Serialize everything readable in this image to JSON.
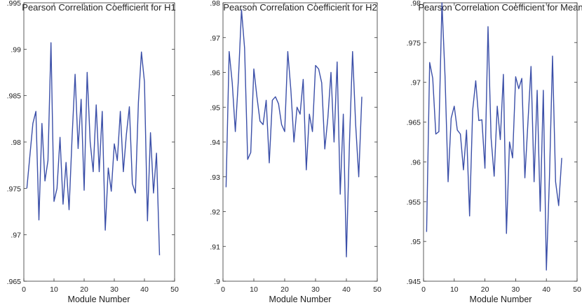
{
  "chart_data": [
    {
      "type": "line",
      "title": "Pearson Correlation Coefficient for H1",
      "xlabel": "Module Number",
      "ylabel": "",
      "xlim": [
        0,
        50
      ],
      "ylim": [
        0.965,
        0.995
      ],
      "xticks": [
        0,
        10,
        20,
        30,
        40,
        50
      ],
      "yticks": [
        0.965,
        0.97,
        0.975,
        0.98,
        0.985,
        0.99,
        0.995
      ],
      "grid": false,
      "color": "#3b4fa8",
      "series": [
        {
          "x": [
            1,
            2,
            3,
            4,
            5,
            6,
            7,
            8,
            9,
            10,
            11,
            12,
            13,
            14,
            15,
            16,
            17,
            18,
            19,
            20,
            21,
            22,
            23,
            24,
            25,
            26,
            27,
            28,
            29,
            30,
            31,
            32,
            33,
            34,
            35,
            36,
            37,
            38,
            39,
            40,
            41,
            42,
            43,
            44,
            45
          ],
          "values": [
            0.975,
            0.9785,
            0.982,
            0.9833,
            0.9716,
            0.982,
            0.9758,
            0.978,
            0.9907,
            0.9736,
            0.975,
            0.9805,
            0.9733,
            0.9778,
            0.9727,
            0.9805,
            0.9873,
            0.9793,
            0.9846,
            0.9748,
            0.9875,
            0.98,
            0.9768,
            0.984,
            0.9768,
            0.9833,
            0.9705,
            0.9772,
            0.9747,
            0.9798,
            0.978,
            0.9833,
            0.9768,
            0.9808,
            0.9838,
            0.9755,
            0.9745,
            0.9843,
            0.9897,
            0.9865,
            0.9715,
            0.981,
            0.9745,
            0.9788,
            0.9678
          ]
        }
      ]
    },
    {
      "type": "line",
      "title": "Pearson Correlation Coefficient for H2",
      "xlabel": "Module Number",
      "ylabel": "",
      "xlim": [
        0,
        50
      ],
      "ylim": [
        0.9,
        0.98
      ],
      "xticks": [
        0,
        10,
        20,
        30,
        40,
        50
      ],
      "yticks": [
        0.9,
        0.91,
        0.92,
        0.93,
        0.94,
        0.95,
        0.96,
        0.97,
        0.98
      ],
      "grid": false,
      "color": "#3b4fa8",
      "series": [
        {
          "x": [
            1,
            2,
            3,
            4,
            5,
            6,
            7,
            8,
            9,
            10,
            11,
            12,
            13,
            14,
            15,
            16,
            17,
            18,
            19,
            20,
            21,
            22,
            23,
            24,
            25,
            26,
            27,
            28,
            29,
            30,
            31,
            32,
            33,
            34,
            35,
            36,
            37,
            38,
            39,
            40,
            41,
            42,
            43,
            44,
            45
          ],
          "values": [
            0.927,
            0.966,
            0.957,
            0.943,
            0.958,
            0.978,
            0.967,
            0.935,
            0.937,
            0.961,
            0.953,
            0.946,
            0.945,
            0.952,
            0.934,
            0.952,
            0.953,
            0.951,
            0.945,
            0.943,
            0.966,
            0.955,
            0.94,
            0.95,
            0.948,
            0.958,
            0.932,
            0.948,
            0.943,
            0.962,
            0.961,
            0.957,
            0.938,
            0.947,
            0.96,
            0.94,
            0.963,
            0.925,
            0.948,
            0.907,
            0.94,
            0.966,
            0.945,
            0.93,
            0.953
          ]
        }
      ]
    },
    {
      "type": "line",
      "title": "Pearson Correlation Coefficient for Mean",
      "xlabel": "Module Number",
      "ylabel": "",
      "xlim": [
        0,
        50
      ],
      "ylim": [
        0.945,
        0.98
      ],
      "xticks": [
        0,
        10,
        20,
        30,
        40,
        50
      ],
      "yticks": [
        0.945,
        0.95,
        0.955,
        0.96,
        0.965,
        0.97,
        0.975,
        0.98
      ],
      "grid": false,
      "color": "#3b4fa8",
      "series": [
        {
          "x": [
            1,
            2,
            3,
            4,
            5,
            6,
            7,
            8,
            9,
            10,
            11,
            12,
            13,
            14,
            15,
            16,
            17,
            18,
            19,
            20,
            21,
            22,
            23,
            24,
            25,
            26,
            27,
            28,
            29,
            30,
            31,
            32,
            33,
            34,
            35,
            36,
            37,
            38,
            39,
            40,
            41,
            42,
            43,
            44,
            45
          ],
          "values": [
            0.9512,
            0.9725,
            0.9705,
            0.9635,
            0.9638,
            0.98,
            0.9708,
            0.9575,
            0.9655,
            0.967,
            0.964,
            0.9635,
            0.959,
            0.964,
            0.9532,
            0.9665,
            0.9702,
            0.9652,
            0.9653,
            0.9592,
            0.977,
            0.963,
            0.9582,
            0.967,
            0.9628,
            0.971,
            0.951,
            0.9625,
            0.9605,
            0.9707,
            0.9692,
            0.9705,
            0.958,
            0.965,
            0.972,
            0.9575,
            0.969,
            0.9538,
            0.969,
            0.9464,
            0.958,
            0.9733,
            0.9575,
            0.9545,
            0.9605
          ]
        }
      ]
    }
  ]
}
